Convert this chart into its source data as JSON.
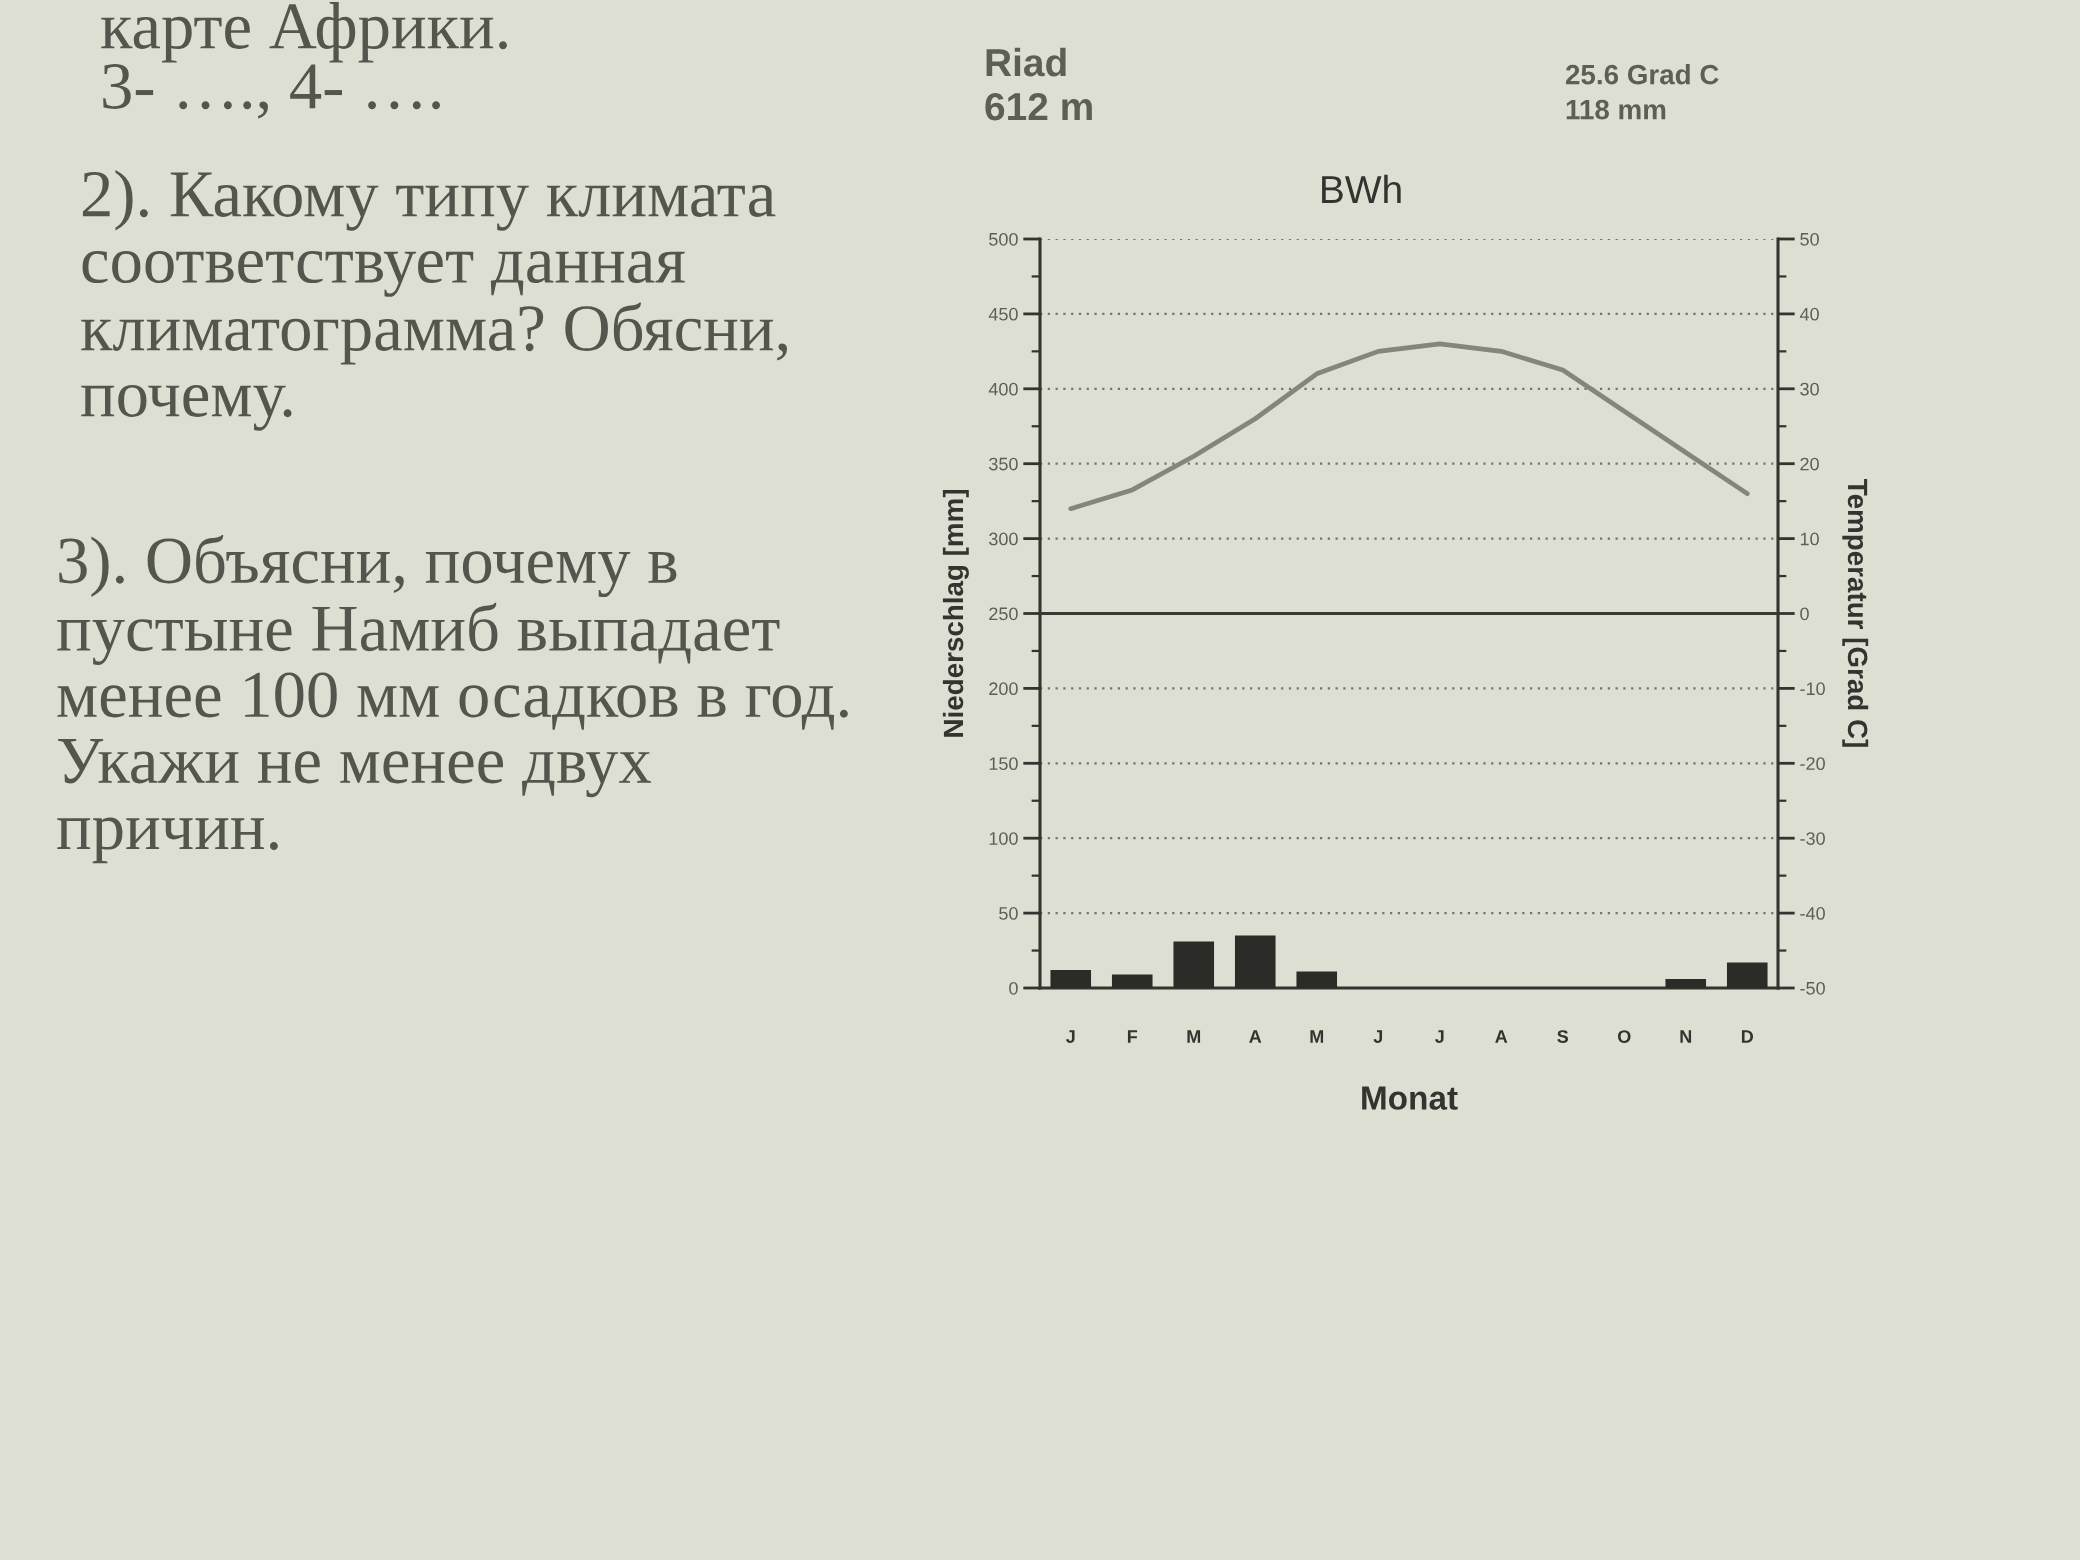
{
  "chart_data": {
    "type": "bar",
    "title": "BWh",
    "xlabel": "Monat",
    "ylabel": "Niederschlag [mm]",
    "y2label": "Temperatur [Grad C]",
    "categories": [
      "J",
      "F",
      "M",
      "A",
      "M",
      "J",
      "J",
      "A",
      "S",
      "O",
      "N",
      "D"
    ],
    "series": [
      {
        "color": "#2b2b28",
        "values": [
          12,
          9,
          31,
          35,
          11,
          0,
          0,
          0,
          0,
          0,
          6,
          17
        ]
      },
      {
        "type": "line",
        "axis": "y2",
        "color": "#858579",
        "line_style": "solid",
        "values": [
          14,
          16.5,
          21,
          26,
          32,
          35,
          36,
          35,
          32.5,
          27,
          21.5,
          16
        ]
      }
    ],
    "ylim": [
      0,
      500
    ],
    "yticks": [
      0,
      50,
      100,
      150,
      200,
      250,
      300,
      350,
      400,
      450,
      500
    ],
    "y2lim": [
      -50,
      50
    ],
    "y2ticks": [
      -50,
      -40,
      -30,
      -20,
      -10,
      0,
      10,
      20,
      30,
      40,
      50
    ],
    "grid": true,
    "ref_lines": [
      {
        "axis": "y2",
        "value": 0,
        "color": "#3a3a36"
      }
    ],
    "annotations": [
      "Riad",
      "612 m",
      "25.6 Grad C",
      "118 mm",
      "карте Африки.",
      "3- …., 4- ….",
      "2). Какому типу климата соответствует данная климатограмма? Обясни, почему.",
      "3). Объясни, почему в пустыне Намиб выпадает менее 100 мм осадков в год. Укажи не менее двух причин."
    ]
  }
}
